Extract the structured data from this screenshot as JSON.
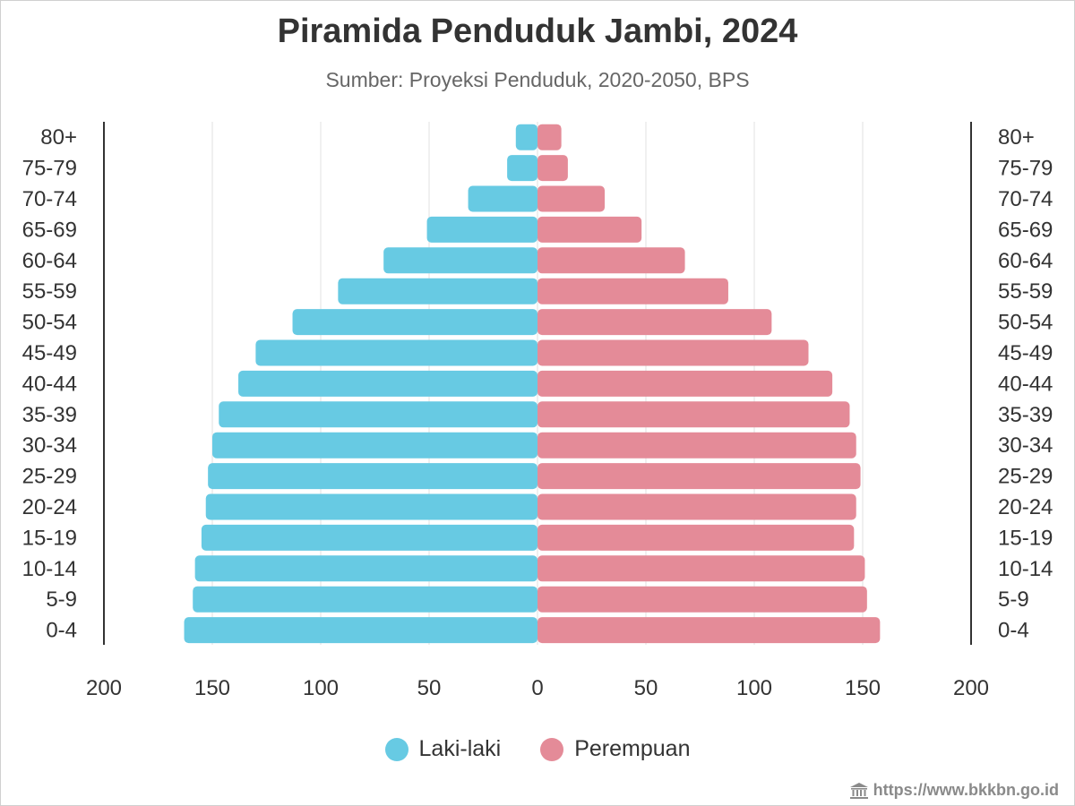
{
  "chart_data": {
    "type": "bar",
    "orientation": "horizontal",
    "layout": "population-pyramid",
    "title": "Piramida Penduduk Jambi, 2024",
    "subtitle": "Sumber: Proyeksi Penduduk, 2020-2050, BPS",
    "categories": [
      "80+",
      "75-79",
      "70-74",
      "65-69",
      "60-64",
      "55-59",
      "50-54",
      "45-49",
      "40-44",
      "35-39",
      "30-34",
      "25-29",
      "20-24",
      "15-19",
      "10-14",
      "5-9",
      "0-4"
    ],
    "series": [
      {
        "name": "Laki-laki",
        "side": "left",
        "color": "#67cae3",
        "values": [
          10,
          14,
          32,
          51,
          71,
          92,
          113,
          130,
          138,
          147,
          150,
          152,
          153,
          155,
          158,
          159,
          163
        ]
      },
      {
        "name": "Perempuan",
        "side": "right",
        "color": "#e48b98",
        "values": [
          11,
          14,
          31,
          48,
          68,
          88,
          108,
          125,
          136,
          144,
          147,
          149,
          147,
          146,
          151,
          152,
          158
        ]
      }
    ],
    "xlim": [
      -200,
      200
    ],
    "x_ticks": [
      -200,
      -150,
      -100,
      -50,
      0,
      50,
      100,
      150,
      200
    ],
    "x_tick_labels": [
      "200",
      "150",
      "100",
      "50",
      "0",
      "50",
      "100",
      "150",
      "200"
    ],
    "grid": true,
    "legend_position": "bottom"
  },
  "source_credit": "https://www.bkkbn.go.id",
  "credit_icon": "institution-building-icon",
  "colors": {
    "male": "#67cae3",
    "female": "#e48b98",
    "text": "#333333",
    "grid": "#e6e6e6",
    "axis": "#333333"
  }
}
